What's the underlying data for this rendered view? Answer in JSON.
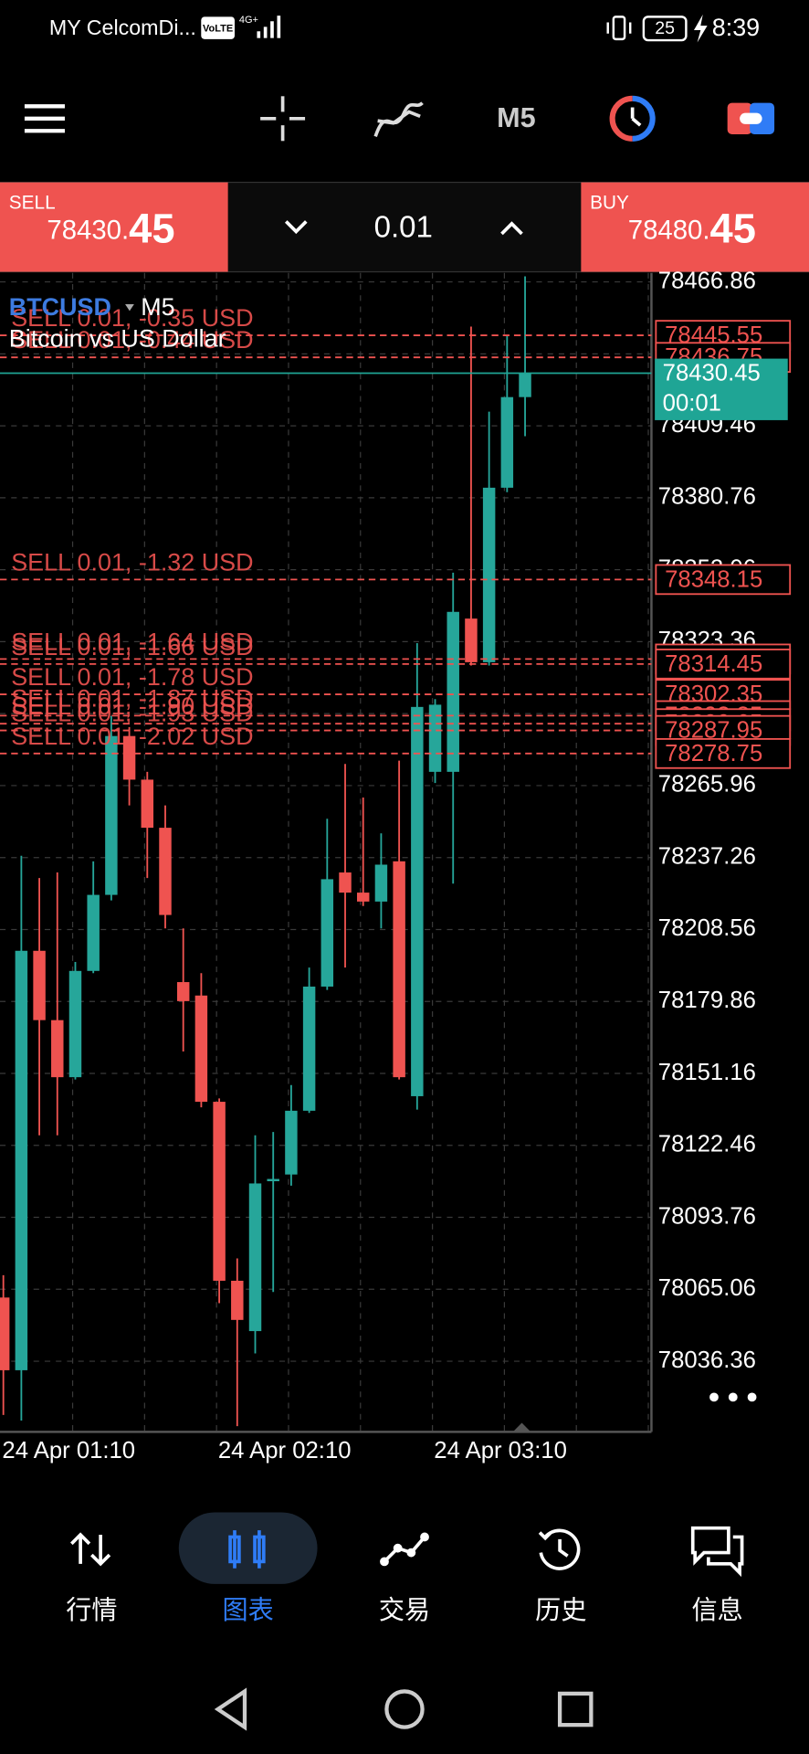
{
  "status_bar": {
    "carrier": "MY CelcomDi...",
    "volte": "VoLTE",
    "network": "4G+",
    "battery": "25",
    "time": "8:39"
  },
  "toolbar": {
    "timeframe": "M5"
  },
  "trade_panel": {
    "sell": {
      "label": "SELL",
      "price_main": "78430.",
      "price_big": "45"
    },
    "volume": "0.01",
    "buy": {
      "label": "BUY",
      "price_main": "78480.",
      "price_big": "45"
    }
  },
  "chart_data": {
    "type": "candlestick",
    "symbol": "BTCUSD",
    "timeframe": "M5",
    "description": "Bitcoin vs US Dollar",
    "colors": {
      "up": "#26a69a",
      "down": "#ef5350",
      "order": "#ef5350",
      "current": "#1fa595"
    },
    "grid": true,
    "ylim": [
      78008.2,
      78470.43
    ],
    "yticks": [
      78466.86,
      78438.16,
      78409.46,
      78380.76,
      78352.06,
      78323.36,
      78294.66,
      78265.96,
      78237.26,
      78208.56,
      78179.86,
      78151.16,
      78122.46,
      78093.76,
      78065.06,
      78036.36
    ],
    "xlabels": [
      "24 Apr 01:10",
      "24 Apr 02:10",
      "24 Apr 03:10"
    ],
    "candles": [
      {
        "open": 78061.77,
        "high": 78070.69,
        "low": 78014.92,
        "close": 78032.77
      },
      {
        "open": 78032.77,
        "high": 78237.99,
        "low": 78012.69,
        "close": 78200.07
      },
      {
        "open": 78200.07,
        "high": 78229.07,
        "low": 78126.46,
        "close": 78172.41
      },
      {
        "open": 78172.41,
        "high": 78231.3,
        "low": 78126.46,
        "close": 78149.65
      },
      {
        "open": 78149.65,
        "high": 78195.61,
        "low": 78148.76,
        "close": 78192.04
      },
      {
        "open": 78192.04,
        "high": 78235.76,
        "low": 78191.15,
        "close": 78222.37
      },
      {
        "open": 78222.37,
        "high": 78293.76,
        "low": 78220.14,
        "close": 78285.73
      },
      {
        "open": 78285.73,
        "high": 78289.3,
        "low": 78258.07,
        "close": 78268.33
      },
      {
        "open": 78268.33,
        "high": 78271.45,
        "low": 78229.07,
        "close": 78249.14
      },
      {
        "open": 78249.14,
        "high": 78258.07,
        "low": 78208.99,
        "close": 78214.35
      },
      {
        "open": 78187.58,
        "high": 78208.99,
        "low": 78159.92,
        "close": 78179.99
      },
      {
        "open": 78182.22,
        "high": 78191.15,
        "low": 78137.61,
        "close": 78139.84
      },
      {
        "open": 78139.84,
        "high": 78141.2,
        "low": 78059.53,
        "close": 78068.46
      },
      {
        "open": 78068.46,
        "high": 78077.38,
        "low": 78010.46,
        "close": 78052.84
      },
      {
        "open": 78048.38,
        "high": 78126.46,
        "low": 78039.46,
        "close": 78107.27
      },
      {
        "open": 78108.16,
        "high": 78127.79,
        "low": 78064.0,
        "close": 78109.06
      },
      {
        "open": 78110.84,
        "high": 78146.53,
        "low": 78106.38,
        "close": 78136.27
      },
      {
        "open": 78136.27,
        "high": 78193.38,
        "low": 78135.38,
        "close": 78185.79
      },
      {
        "open": 78185.79,
        "high": 78252.71,
        "low": 78184.45,
        "close": 78228.62
      },
      {
        "open": 78231.3,
        "high": 78274.57,
        "low": 78193.38,
        "close": 78223.27
      },
      {
        "open": 78223.27,
        "high": 78261.19,
        "low": 78217.91,
        "close": 78219.7
      },
      {
        "open": 78219.7,
        "high": 78246.91,
        "low": 78208.99,
        "close": 78234.42
      },
      {
        "open": 78235.76,
        "high": 78275.91,
        "low": 78148.76,
        "close": 78149.65
      },
      {
        "open": 78142.07,
        "high": 78322.76,
        "low": 78136.72,
        "close": 78297.33
      },
      {
        "open": 78271.45,
        "high": 78300.45,
        "low": 78266.99,
        "close": 78298.22
      },
      {
        "open": 78271.45,
        "high": 78350.86,
        "low": 78226.84,
        "close": 78335.25
      },
      {
        "open": 78332.57,
        "high": 78449.01,
        "low": 78313.83,
        "close": 78315.17
      },
      {
        "open": 78315.17,
        "high": 78415.11,
        "low": 78313.83,
        "close": 78384.77
      },
      {
        "open": 78384.77,
        "high": 78445.45,
        "low": 78382.99,
        "close": 78420.91
      },
      {
        "open": 78420.91,
        "high": 78469.09,
        "low": 78405.29,
        "close": 78430.45
      }
    ],
    "current_price": {
      "value": 78430.45,
      "timer": "00:01"
    },
    "orders": [
      {
        "price": 78445.55,
        "label": "SELL 0.01,  -0.35 USD"
      },
      {
        "price": 78436.75,
        "label": "SELL 0.01,  -0.44 USD"
      },
      {
        "price": 78348.15,
        "label": "SELL 0.01,  -1.32 USD"
      },
      {
        "price": 78316.45,
        "label": "SELL 0.01,  -1.64 USD"
      },
      {
        "price": 78314.45,
        "label": "SELL 0.01,  -1.66 USD"
      },
      {
        "price": 78302.35,
        "label": "SELL 0.01,  -1.78 USD"
      },
      {
        "price": 78293.85,
        "label": "SELL 0.01,  -1.87 USD"
      },
      {
        "price": 78290.65,
        "label": "SELL 0.01,  -1.90 USD"
      },
      {
        "price": 78287.95,
        "label": "SELL 0.01,  -1.93 USD"
      },
      {
        "price": 78278.75,
        "label": "SELL 0.01,  -2.02 USD"
      }
    ]
  },
  "bottom_nav": [
    {
      "label": "行情",
      "active": false
    },
    {
      "label": "图表",
      "active": true
    },
    {
      "label": "交易",
      "active": false
    },
    {
      "label": "历史",
      "active": false
    },
    {
      "label": "信息",
      "active": false
    }
  ]
}
